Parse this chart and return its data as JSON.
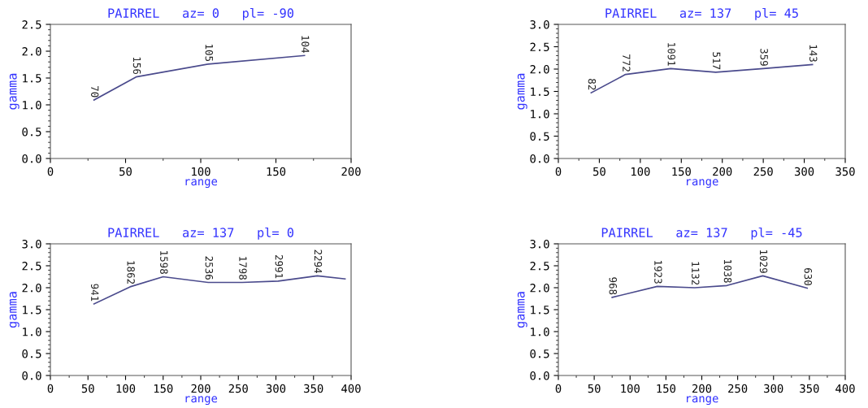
{
  "chart_data": [
    {
      "type": "line",
      "title": "PAIRREL   az= 0   pl= -90",
      "xlabel": "range",
      "ylabel": "gamma",
      "x": [
        29,
        57,
        105,
        169
      ],
      "series": [
        {
          "color": "#4a4a8c",
          "values": [
            1.09,
            1.52,
            1.76,
            1.92
          ]
        }
      ],
      "xlim": [
        0,
        200
      ],
      "xticks": [
        0,
        50,
        100,
        150,
        200
      ],
      "ylim": [
        0,
        2.5
      ],
      "yticks": [
        {
          "value": 0,
          "label": "0.0"
        },
        {
          "value": 0.5,
          "label": "0.5"
        },
        {
          "value": 1,
          "label": "1.0"
        },
        {
          "value": 1.5,
          "label": "1.5"
        },
        {
          "value": 2,
          "label": "2.0"
        },
        {
          "value": 2.5,
          "label": "2.5"
        }
      ],
      "grid": false,
      "marker": "none",
      "annotations": [
        {
          "text": "70",
          "x": 29,
          "y": 1.09
        },
        {
          "text": "156",
          "x": 57,
          "y": 1.52
        },
        {
          "text": "105",
          "x": 105,
          "y": 1.76
        },
        {
          "text": "104",
          "x": 169,
          "y": 1.92
        }
      ]
    },
    {
      "type": "line",
      "title": "PAIRREL   az= 137   pl= 45",
      "xlabel": "range",
      "ylabel": "gamma",
      "x": [
        40,
        82,
        137,
        192,
        250,
        310
      ],
      "series": [
        {
          "color": "#4a4a8c",
          "values": [
            1.47,
            1.88,
            2.01,
            1.93,
            2.01,
            2.1
          ]
        }
      ],
      "xlim": [
        0,
        350
      ],
      "xticks": [
        0,
        50,
        100,
        150,
        200,
        250,
        300,
        350
      ],
      "ylim": [
        0,
        3
      ],
      "yticks": [
        {
          "value": 0,
          "label": "0.0"
        },
        {
          "value": 0.5,
          "label": "0.5"
        },
        {
          "value": 1,
          "label": "1.0"
        },
        {
          "value": 1.5,
          "label": "1.5"
        },
        {
          "value": 2,
          "label": "2.0"
        },
        {
          "value": 2.5,
          "label": "2.5"
        },
        {
          "value": 3,
          "label": "3.0"
        }
      ],
      "grid": false,
      "marker": "none",
      "annotations": [
        {
          "text": "82",
          "x": 40,
          "y": 1.47
        },
        {
          "text": "772",
          "x": 82,
          "y": 1.88
        },
        {
          "text": "1091",
          "x": 137,
          "y": 2.01
        },
        {
          "text": "517",
          "x": 192,
          "y": 1.93
        },
        {
          "text": "359",
          "x": 250,
          "y": 2.01
        },
        {
          "text": "143",
          "x": 310,
          "y": 2.1
        }
      ]
    },
    {
      "type": "line",
      "title": "PAIRREL   az= 137   pl= 0",
      "xlabel": "range",
      "ylabel": "gamma",
      "x": [
        58,
        106,
        150,
        210,
        255,
        303,
        355,
        392
      ],
      "series": [
        {
          "color": "#4a4a8c",
          "values": [
            1.63,
            2.02,
            2.25,
            2.12,
            2.12,
            2.15,
            2.27,
            2.2
          ]
        }
      ],
      "xlim": [
        0,
        400
      ],
      "xticks": [
        0,
        50,
        100,
        150,
        200,
        250,
        300,
        350,
        400
      ],
      "ylim": [
        0,
        3
      ],
      "yticks": [
        {
          "value": 0,
          "label": "0.0"
        },
        {
          "value": 0.5,
          "label": "0.5"
        },
        {
          "value": 1,
          "label": "1.0"
        },
        {
          "value": 1.5,
          "label": "1.5"
        },
        {
          "value": 2,
          "label": "2.0"
        },
        {
          "value": 2.5,
          "label": "2.5"
        },
        {
          "value": 3,
          "label": "3.0"
        }
      ],
      "grid": false,
      "marker": "none",
      "annotations": [
        {
          "text": "941",
          "x": 58,
          "y": 1.63
        },
        {
          "text": "1862",
          "x": 106,
          "y": 2.02
        },
        {
          "text": "1598",
          "x": 150,
          "y": 2.25
        },
        {
          "text": "2536",
          "x": 210,
          "y": 2.12
        },
        {
          "text": "1798",
          "x": 255,
          "y": 2.12
        },
        {
          "text": "2991",
          "x": 303,
          "y": 2.15
        },
        {
          "text": "2294",
          "x": 355,
          "y": 2.27
        }
      ]
    },
    {
      "type": "line",
      "title": "PAIRREL   az= 137   pl= -45",
      "xlabel": "range",
      "ylabel": "gamma",
      "x": [
        75,
        138,
        190,
        235,
        285,
        347
      ],
      "series": [
        {
          "color": "#4a4a8c",
          "values": [
            1.78,
            2.03,
            2.0,
            2.05,
            2.27,
            1.99
          ]
        }
      ],
      "xlim": [
        0,
        400
      ],
      "xticks": [
        0,
        50,
        100,
        150,
        200,
        250,
        300,
        350,
        400
      ],
      "ylim": [
        0,
        3
      ],
      "yticks": [
        {
          "value": 0,
          "label": "0.0"
        },
        {
          "value": 0.5,
          "label": "0.5"
        },
        {
          "value": 1,
          "label": "1.0"
        },
        {
          "value": 1.5,
          "label": "1.5"
        },
        {
          "value": 2,
          "label": "2.0"
        },
        {
          "value": 2.5,
          "label": "2.5"
        },
        {
          "value": 3,
          "label": "3.0"
        }
      ],
      "grid": false,
      "marker": "none",
      "annotations": [
        {
          "text": "968",
          "x": 75,
          "y": 1.78
        },
        {
          "text": "1923",
          "x": 138,
          "y": 2.03
        },
        {
          "text": "1132",
          "x": 190,
          "y": 2.0
        },
        {
          "text": "1038",
          "x": 235,
          "y": 2.05
        },
        {
          "text": "1029",
          "x": 285,
          "y": 2.27
        },
        {
          "text": "630",
          "x": 347,
          "y": 1.99
        }
      ]
    }
  ]
}
